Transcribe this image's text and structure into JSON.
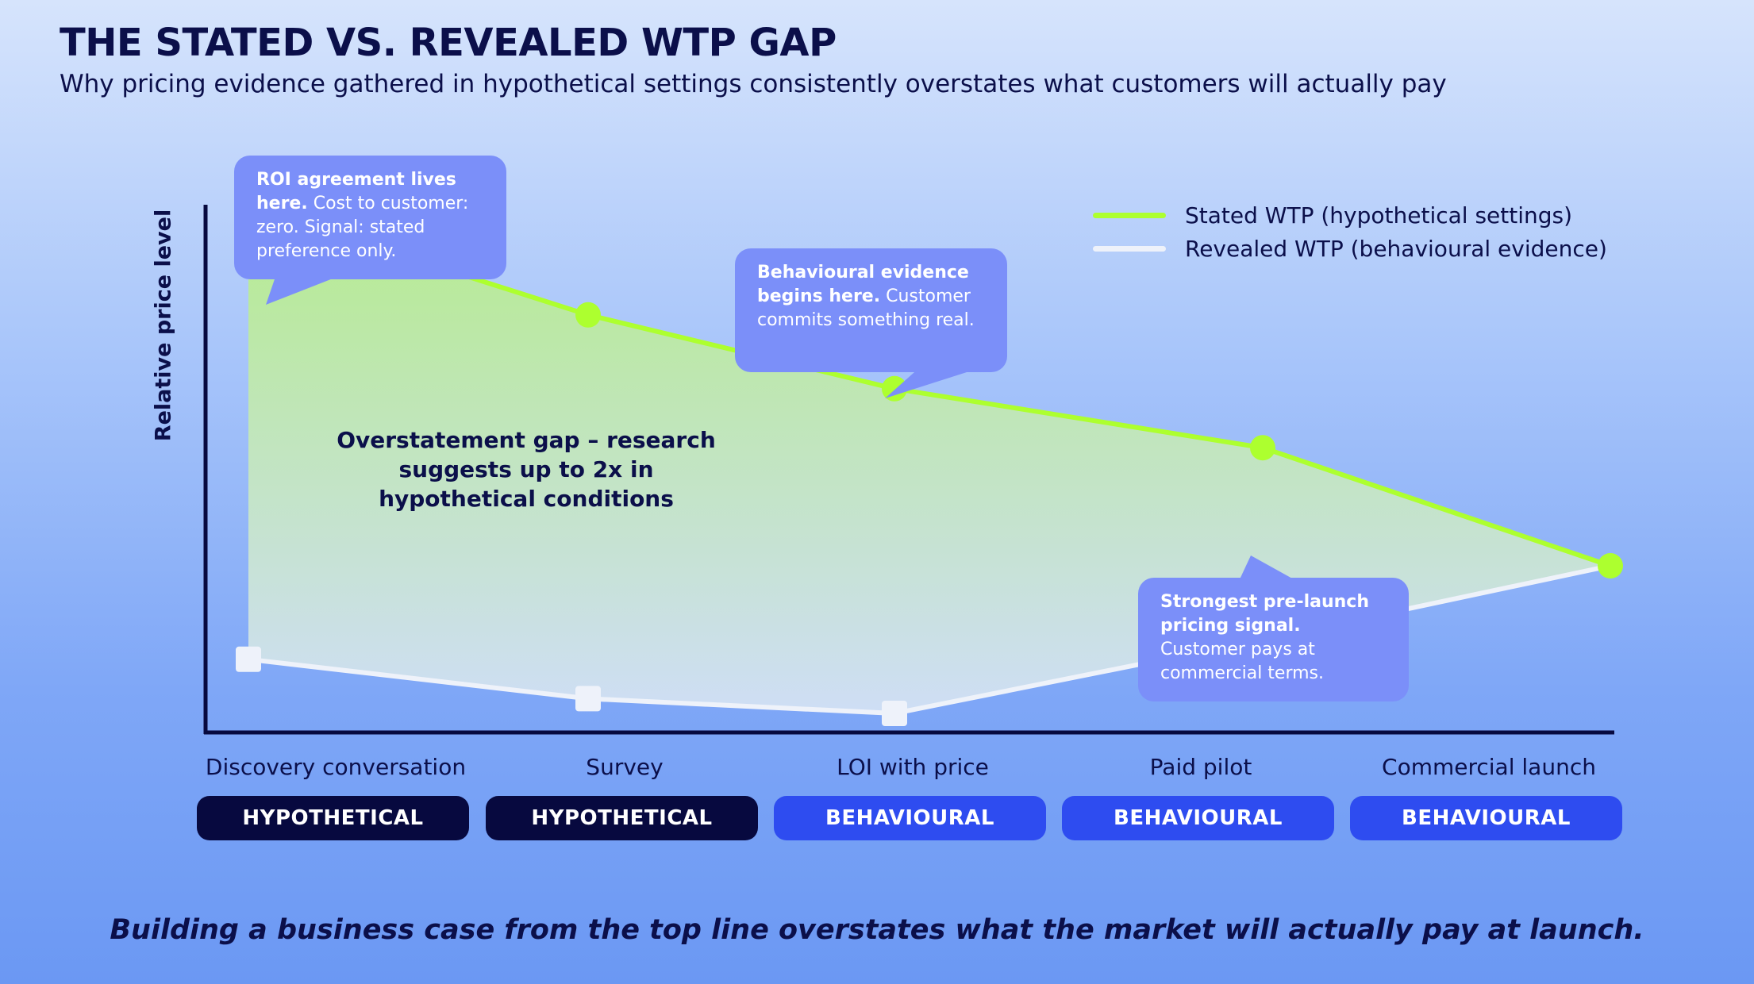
{
  "header": {
    "title": "THE STATED VS. REVEALED WTP GAP",
    "subtitle": "Why pricing evidence gathered in hypothetical settings consistently overstates what customers will actually pay"
  },
  "chart_data": {
    "type": "line",
    "categories": [
      "Discovery conversation",
      "Survey",
      "LOI with price",
      "Paid pilot",
      "Commercial launch"
    ],
    "ylabel": "Relative price level",
    "ylim": [
      0,
      10
    ],
    "series": [
      {
        "name": "Stated WTP (hypothetical settings)",
        "values": [
          7.9,
          6.8,
          6.05,
          5.45,
          4.25
        ],
        "color": "#adff2f",
        "marker": "circle"
      },
      {
        "name": "Revealed WTP (behavioural evidence)",
        "values": [
          3.3,
          2.9,
          2.75,
          3.5,
          4.25
        ],
        "color": "#eef2fa",
        "marker": "square"
      }
    ],
    "shaded_area": "between series",
    "legend_position": "top-right",
    "stage_tags": [
      "HYPOTHETICAL",
      "HYPOTHETICAL",
      "BEHAVIOURAL",
      "BEHAVIOURAL",
      "BEHAVIOURAL"
    ],
    "annotations": {
      "gap": "Overstatement gap – research suggests up to 2x in hypothetical conditions",
      "callout1": {
        "bold": "ROI agreement lives here.",
        "text": " Cost to customer: zero. Signal: stated preference only."
      },
      "callout2": {
        "bold": "Behavioural evidence begins here.",
        "text": " Customer commits something real."
      },
      "callout3": {
        "bold": "Strongest pre-launch pricing signal.",
        "text": " Customer pays at commercial terms."
      }
    }
  },
  "colors": {
    "stated": "#adff2f",
    "revealed": "#eef2fa",
    "callout_bg": "#7b8ff9",
    "hypothetical_pill": "#07093f",
    "behavioural_pill": "#2e4cf0",
    "text": "#0b0f4a"
  },
  "footer": {
    "text": "Building a business case from the top line overstates what the market will actually pay at launch."
  }
}
